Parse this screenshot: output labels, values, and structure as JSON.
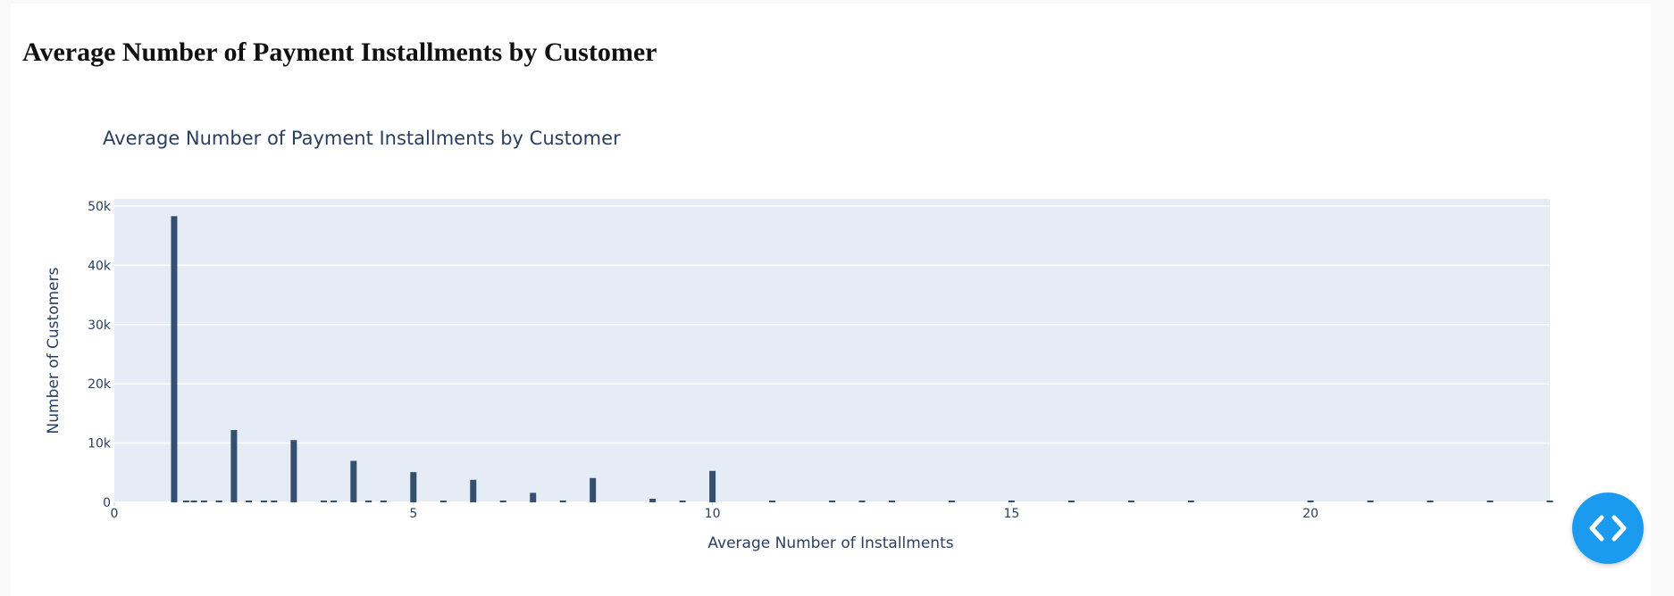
{
  "page": {
    "heading": "Average Number of Payment Installments by Customer"
  },
  "code_button": {
    "icon": "code-brackets-icon",
    "color": "#1a9bf0"
  },
  "chart_data": {
    "type": "bar",
    "title": "Average Number of Payment Installments by Customer",
    "xlabel": "Average Number of Installments",
    "ylabel": "Number of Customers",
    "xlim": [
      0,
      24
    ],
    "ylim": [
      0,
      50000
    ],
    "x_ticks": [
      0,
      5,
      10,
      15,
      20
    ],
    "y_ticks": [
      {
        "value": 0,
        "label": "0"
      },
      {
        "value": 10000,
        "label": "10k"
      },
      {
        "value": 20000,
        "label": "20k"
      },
      {
        "value": 30000,
        "label": "30k"
      },
      {
        "value": 40000,
        "label": "40k"
      },
      {
        "value": 50000,
        "label": "50k"
      }
    ],
    "grid": true,
    "bar_color": "#34506e",
    "plot_background": "#e5ecf6",
    "points": [
      {
        "x": 1,
        "y": 48300
      },
      {
        "x": 1.2,
        "y": 150
      },
      {
        "x": 1.33,
        "y": 120
      },
      {
        "x": 1.5,
        "y": 250
      },
      {
        "x": 1.75,
        "y": 80
      },
      {
        "x": 2,
        "y": 12200
      },
      {
        "x": 2.25,
        "y": 60
      },
      {
        "x": 2.5,
        "y": 150
      },
      {
        "x": 2.67,
        "y": 80
      },
      {
        "x": 3,
        "y": 10500
      },
      {
        "x": 3.5,
        "y": 100
      },
      {
        "x": 3.67,
        "y": 60
      },
      {
        "x": 4,
        "y": 7000
      },
      {
        "x": 4.25,
        "y": 50
      },
      {
        "x": 4.5,
        "y": 80
      },
      {
        "x": 5,
        "y": 5100
      },
      {
        "x": 5.5,
        "y": 60
      },
      {
        "x": 6,
        "y": 3800
      },
      {
        "x": 6.5,
        "y": 40
      },
      {
        "x": 7,
        "y": 1600
      },
      {
        "x": 7.5,
        "y": 40
      },
      {
        "x": 8,
        "y": 4100
      },
      {
        "x": 9,
        "y": 600
      },
      {
        "x": 9.5,
        "y": 40
      },
      {
        "x": 10,
        "y": 5300
      },
      {
        "x": 11,
        "y": 30
      },
      {
        "x": 12,
        "y": 40
      },
      {
        "x": 12.5,
        "y": 20
      },
      {
        "x": 13,
        "y": 30
      },
      {
        "x": 14,
        "y": 20
      },
      {
        "x": 15,
        "y": 50
      },
      {
        "x": 16,
        "y": 20
      },
      {
        "x": 17,
        "y": 20
      },
      {
        "x": 18,
        "y": 40
      },
      {
        "x": 20,
        "y": 20
      },
      {
        "x": 21,
        "y": 20
      },
      {
        "x": 22,
        "y": 20
      },
      {
        "x": 23,
        "y": 20
      },
      {
        "x": 24,
        "y": 20
      }
    ]
  }
}
